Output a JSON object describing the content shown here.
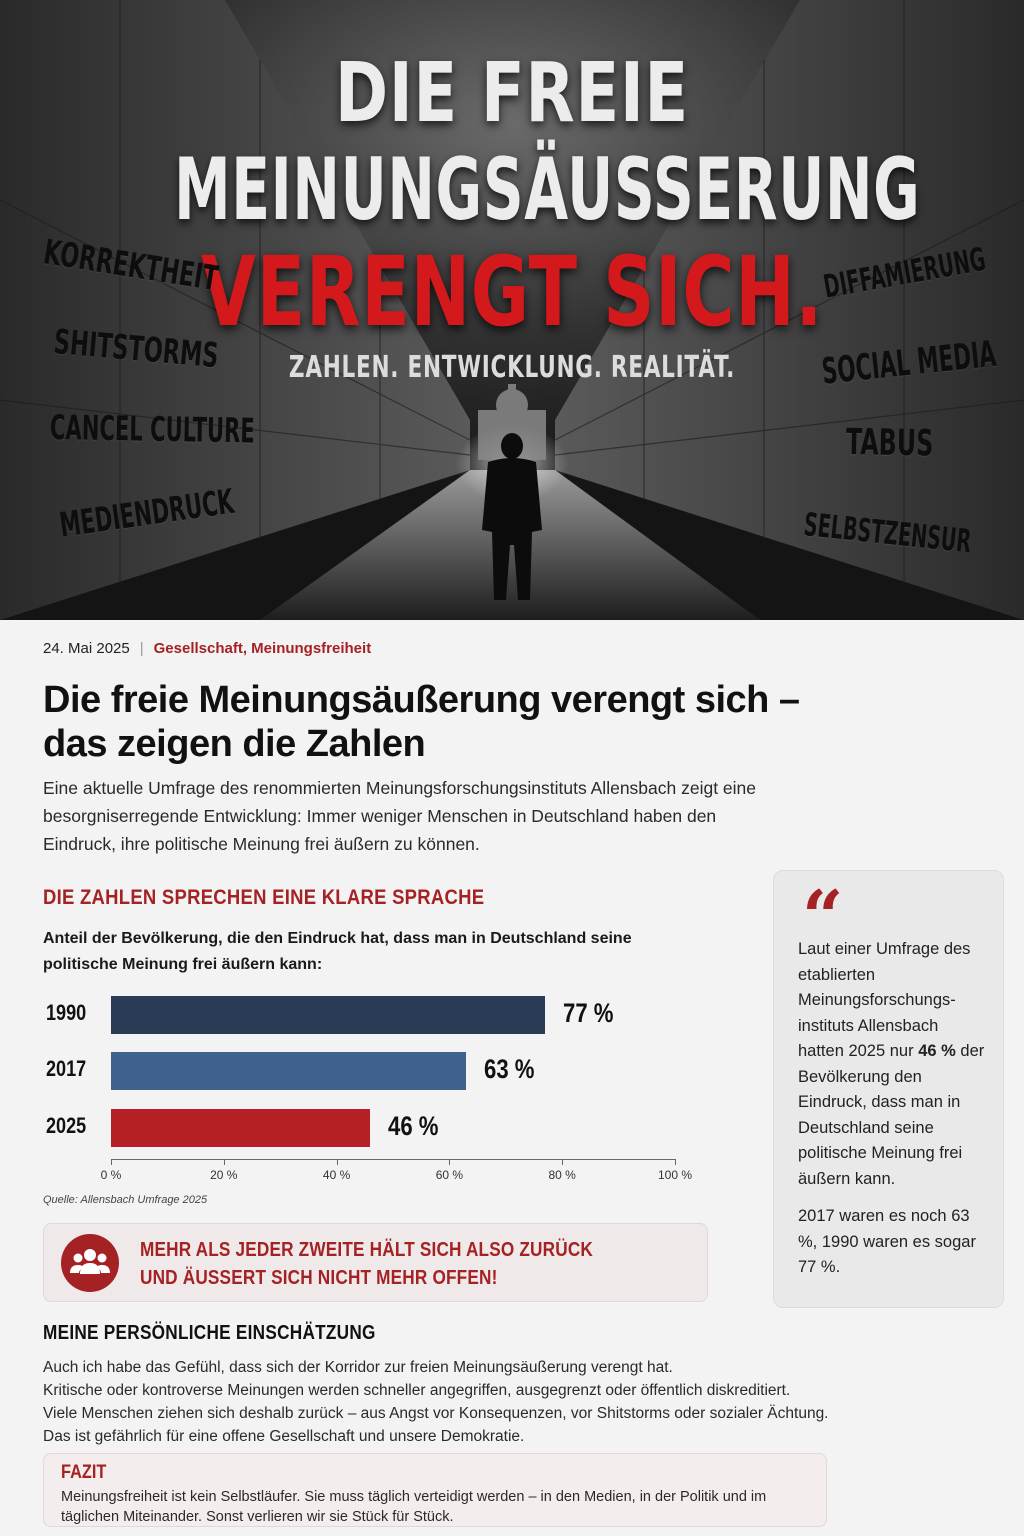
{
  "hero": {
    "line1": "DIE FREIE",
    "line2": "MEINUNGSÄUßERUNG",
    "line3": "VERENGT SICH.",
    "subtitle": "ZAHLEN. ENTWICKLUNG. REALITÄT.",
    "left_words": [
      "KORREKTHEIT",
      "SHITSTORMS",
      "CANCEL CULTURE",
      "MEDIENDRUCK"
    ],
    "right_words": [
      "DIFFAMIERUNG",
      "SOCIAL MEDIA",
      "TABUS",
      "SELBSTZENSUR"
    ]
  },
  "article": {
    "date": "24. Mai 2025",
    "separator": "|",
    "categories": "Gesellschaft, Meinungsfreiheit",
    "headline": "Die freie Meinungsäußerung verengt sich – das zeigen die Zahlen",
    "intro": "Eine aktuelle Umfrage des renommierten Meinungsforschungsinstituts Allensbach zeigt eine besorgniserregende Entwicklung: Immer weniger Menschen in Deutschland haben den Eindruck, ihre politische Meinung frei äußern zu können."
  },
  "chart_section": {
    "heading": "DIE ZAHLEN SPRECHEN EINE KLARE SPRACHE",
    "question": "Anteil der Bevölkerung, die den Eindruck hat, dass man in Deutschland seine politische Meinung frei äußern kann:",
    "source": "Quelle: Allensbach Umfrage 2025"
  },
  "chart_data": {
    "type": "bar",
    "orientation": "horizontal",
    "categories": [
      "1990",
      "2017",
      "2025"
    ],
    "values": [
      77,
      63,
      46
    ],
    "value_labels": [
      "77 %",
      "63 %",
      "46 %"
    ],
    "colors": [
      "#2a3b55",
      "#3f628c",
      "#b52024"
    ],
    "xlim": [
      0,
      100
    ],
    "x_ticks": [
      0,
      20,
      40,
      60,
      80,
      100
    ],
    "x_tick_labels": [
      "0 %",
      "20 %",
      "40 %",
      "60 %",
      "80 %",
      "100 %"
    ],
    "title": "",
    "xlabel": "",
    "ylabel": ""
  },
  "callout": {
    "icon": "group-icon",
    "text": "MEHR ALS JEDER ZWEITE HÄLT SICH ALSO ZURÜCK UND ÄUSSERT SICH NICHT MEHR OFFEN!"
  },
  "quote": {
    "mark": "“",
    "before": "Laut einer Umfrage des etablierten Meinungsforschungs-instituts Allensbach hatten 2025 nur",
    "highlight": "46 %",
    "after": "der Bevölkerung den Eindruck, dass man in Deutschland seine politische Meinung frei äußern kann.",
    "second": "2017 waren es noch 63 %, 1990 waren es sogar 77 %."
  },
  "opinion": {
    "heading": "MEINE PERSÖNLICHE EINSCHÄTZUNG",
    "lines": [
      "Auch ich habe das Gefühl, dass sich der Korridor zur freien Meinungsäußerung verengt hat.",
      "Kritische oder kontroverse Meinungen werden schneller angegriffen, ausgegrenzt oder öffentlich diskreditiert.",
      "Viele Menschen ziehen sich deshalb zurück – aus Angst vor Konsequenzen, vor Shitstorms oder sozialer Ächtung.",
      "Das ist gefährlich für eine offene Gesellschaft und unsere Demokratie."
    ]
  },
  "fazit": {
    "heading": "FAZIT",
    "text": "Meinungsfreiheit ist kein Selbstläufer. Sie muss täglich verteidigt werden – in den Medien, in der Politik und im täglichen Miteinander. Sonst verlieren wir sie Stück für Stück."
  },
  "colors": {
    "accent": "#a52224",
    "headline_red": "#d3191c",
    "page_bg": "#f3f3f3"
  }
}
